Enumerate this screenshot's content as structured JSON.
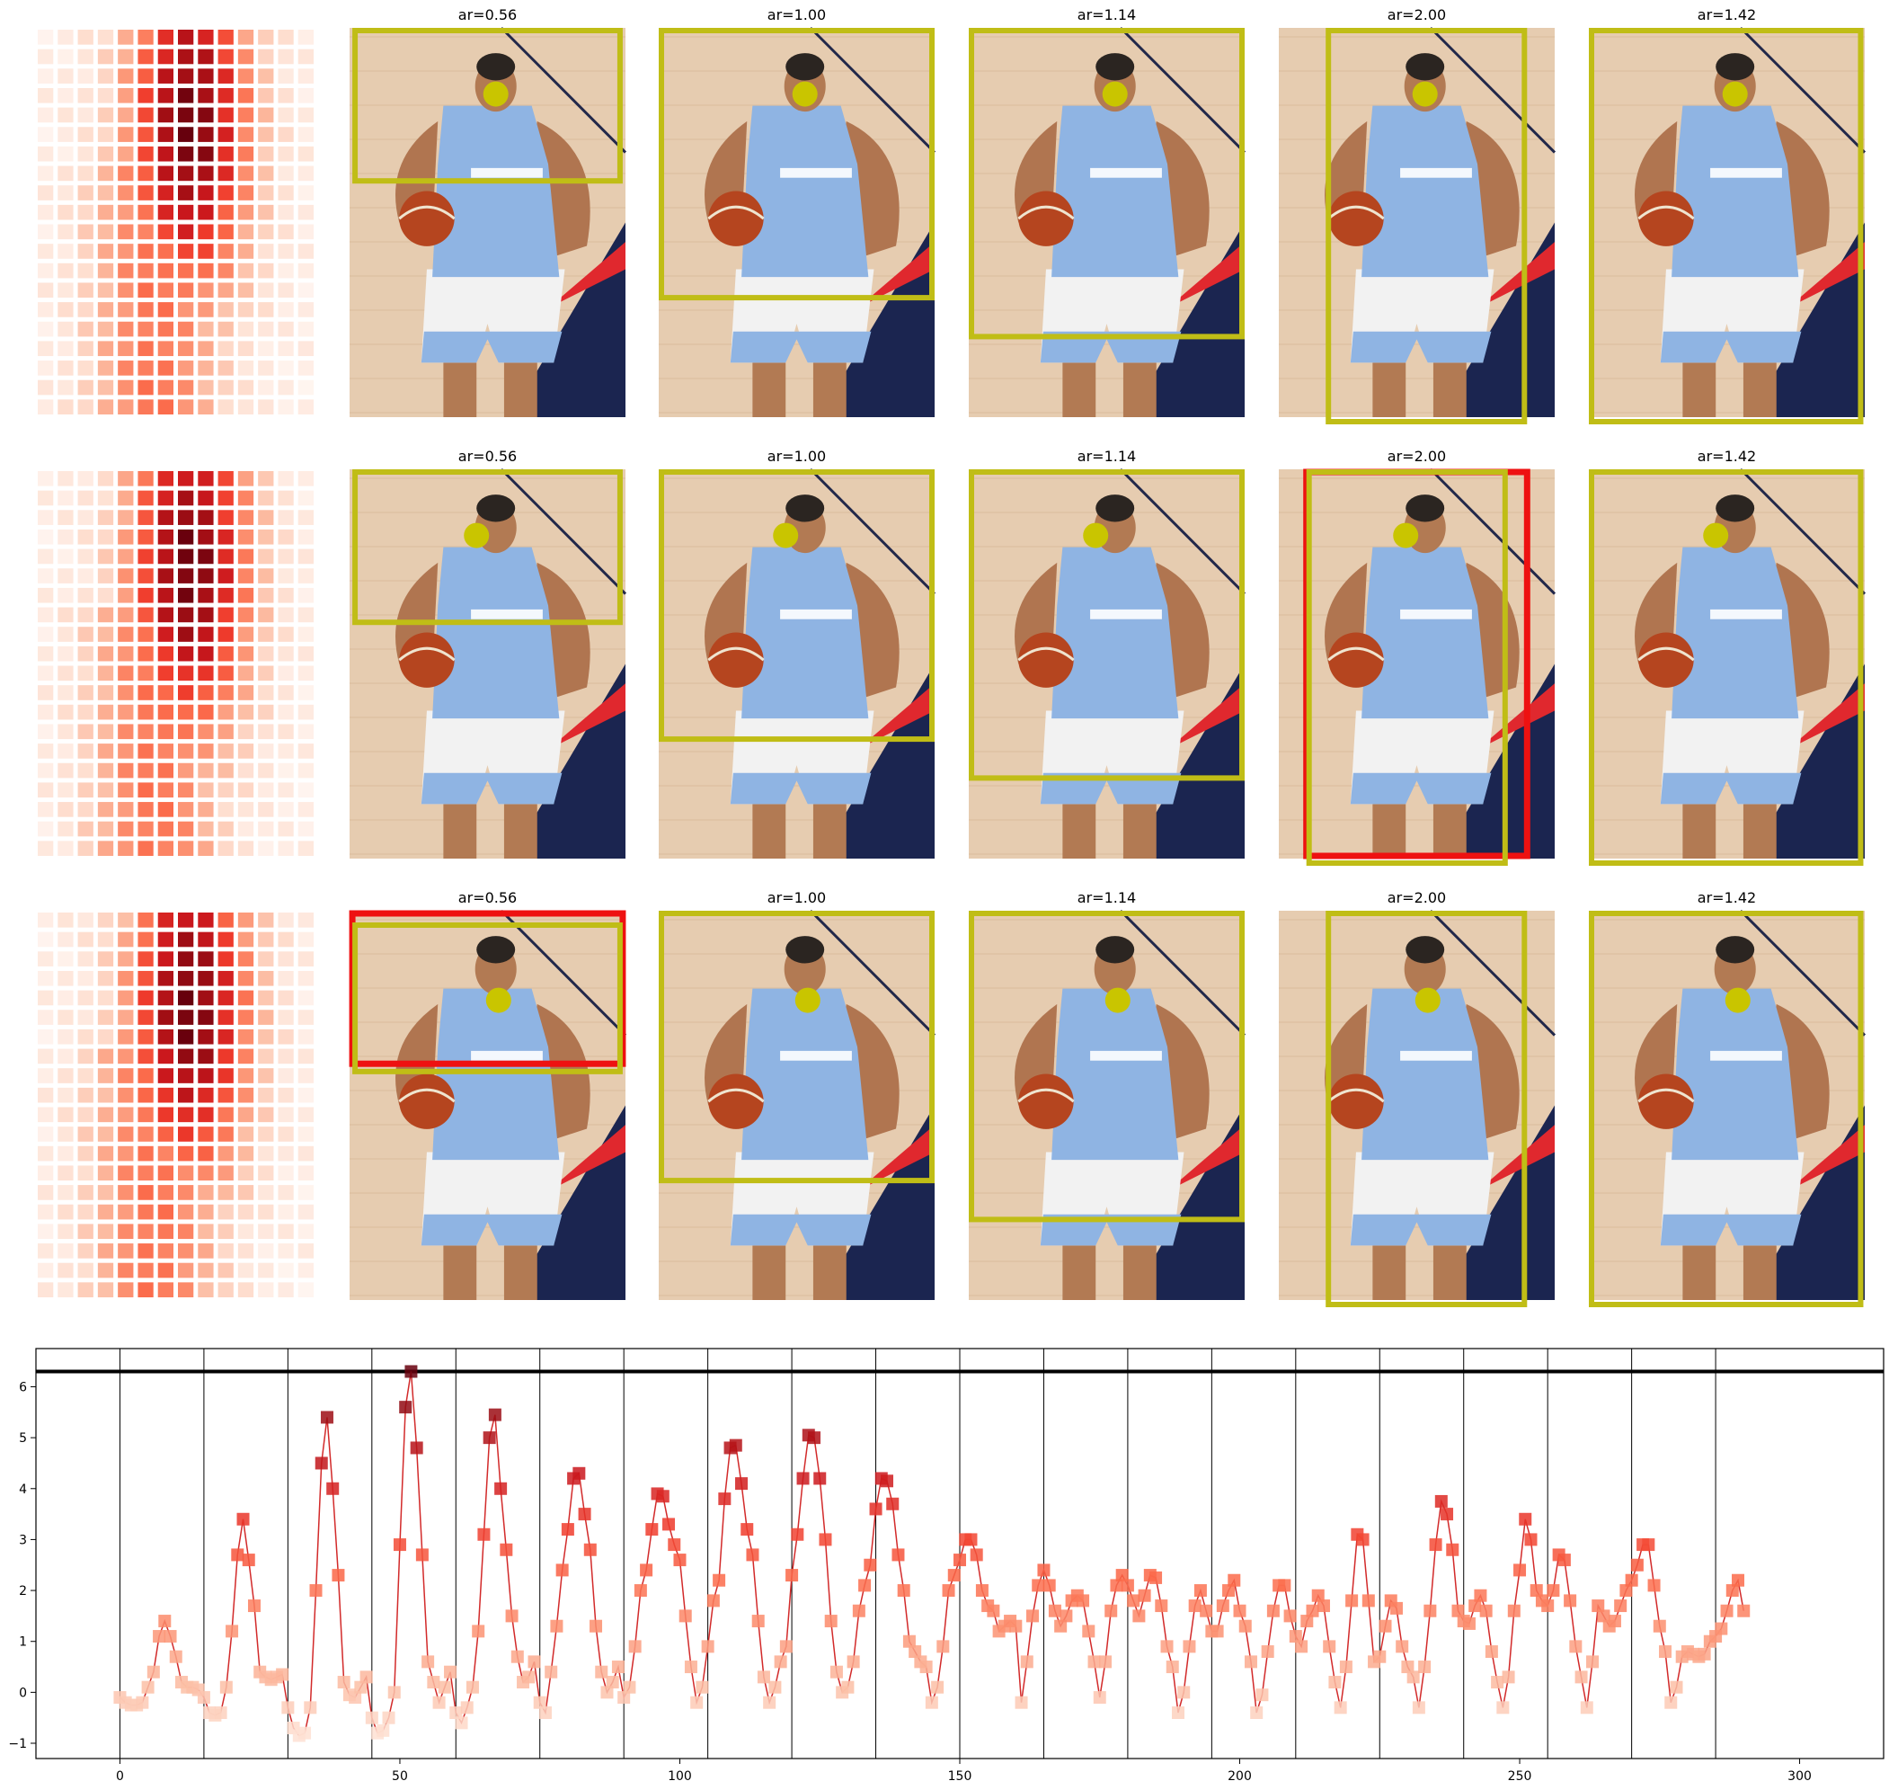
{
  "colors": {
    "box": "#c0bd16",
    "box_conflict": "#ee1111",
    "dot": "#c9c500",
    "line": "#d22a2a",
    "jersey": "#8fb4e3",
    "floor": "#e6ccb0"
  },
  "grid": {
    "rows": [
      {
        "panels": [
          {
            "title": "",
            "kind": "heatmap"
          },
          {
            "title": "ar=0.56",
            "kind": "photo",
            "conflict": false
          },
          {
            "title": "ar=1.00",
            "kind": "photo",
            "conflict": false
          },
          {
            "title": "ar=1.14",
            "kind": "photo",
            "conflict": false
          },
          {
            "title": "ar=2.00",
            "kind": "photo",
            "conflict": false
          },
          {
            "title": "ar=1.42",
            "kind": "photo",
            "conflict": false
          }
        ]
      },
      {
        "panels": [
          {
            "title": "",
            "kind": "heatmap"
          },
          {
            "title": "ar=0.56",
            "kind": "photo",
            "conflict": false
          },
          {
            "title": "ar=1.00",
            "kind": "photo",
            "conflict": false
          },
          {
            "title": "ar=1.14",
            "kind": "photo",
            "conflict": false
          },
          {
            "title": "ar=2.00",
            "kind": "photo",
            "conflict": true
          },
          {
            "title": "ar=1.42",
            "kind": "photo",
            "conflict": false
          }
        ]
      },
      {
        "panels": [
          {
            "title": "",
            "kind": "heatmap"
          },
          {
            "title": "ar=0.56",
            "kind": "photo",
            "conflict": true
          },
          {
            "title": "ar=1.00",
            "kind": "photo",
            "conflict": false
          },
          {
            "title": "ar=1.14",
            "kind": "photo",
            "conflict": false
          },
          {
            "title": "ar=2.00",
            "kind": "photo",
            "conflict": false
          },
          {
            "title": "ar=1.42",
            "kind": "photo",
            "conflict": false
          }
        ]
      }
    ]
  },
  "chart_data": {
    "type": "line",
    "title": "",
    "xlabel": "",
    "ylabel": "",
    "xlim": [
      -15,
      315
    ],
    "ylim": [
      -1.3,
      6.75
    ],
    "xticks": [
      0,
      50,
      100,
      150,
      200,
      250,
      300
    ],
    "yticks": [
      -1,
      0,
      1,
      2,
      3,
      4,
      5,
      6
    ],
    "vlines": [
      0,
      15,
      30,
      45,
      60,
      75,
      90,
      105,
      120,
      135,
      150,
      165,
      180,
      195,
      210,
      225,
      240,
      255,
      270,
      285
    ],
    "hline": 6.3,
    "grid": false,
    "legend": "none",
    "marker": "square",
    "x_start": 0,
    "x_step": 1,
    "values": [
      -0.1,
      -0.2,
      -0.25,
      -0.25,
      -0.2,
      0.1,
      0.4,
      1.1,
      1.4,
      1.1,
      0.7,
      0.2,
      0.1,
      0.1,
      0.05,
      -0.1,
      -0.4,
      -0.45,
      -0.4,
      0.1,
      1.2,
      2.7,
      3.4,
      2.6,
      1.7,
      0.4,
      0.3,
      0.25,
      0.3,
      0.35,
      -0.3,
      -0.7,
      -0.85,
      -0.8,
      -0.3,
      2.0,
      4.5,
      5.4,
      4.0,
      2.3,
      0.2,
      -0.05,
      -0.1,
      0.1,
      0.3,
      -0.5,
      -0.8,
      -0.75,
      -0.5,
      0.0,
      2.9,
      5.6,
      6.3,
      4.8,
      2.7,
      0.6,
      0.2,
      -0.2,
      0.1,
      0.4,
      -0.4,
      -0.6,
      -0.3,
      0.1,
      1.2,
      3.1,
      5.0,
      5.45,
      4.0,
      2.8,
      1.5,
      0.7,
      0.2,
      0.3,
      0.6,
      -0.2,
      -0.4,
      0.4,
      1.3,
      2.4,
      3.2,
      4.2,
      4.3,
      3.5,
      2.8,
      1.3,
      0.4,
      0.0,
      0.2,
      0.5,
      -0.1,
      0.1,
      0.9,
      2.0,
      2.4,
      3.2,
      3.9,
      3.85,
      3.3,
      2.9,
      2.6,
      1.5,
      0.5,
      -0.2,
      0.1,
      0.9,
      1.8,
      2.2,
      3.8,
      4.8,
      4.85,
      4.1,
      3.2,
      2.7,
      1.4,
      0.3,
      -0.2,
      0.1,
      0.6,
      0.9,
      2.3,
      3.1,
      4.2,
      5.05,
      5.0,
      4.2,
      3.0,
      1.4,
      0.4,
      0.0,
      0.1,
      0.6,
      1.6,
      2.1,
      2.5,
      3.6,
      4.2,
      4.15,
      3.7,
      2.7,
      2.0,
      1.0,
      0.8,
      0.6,
      0.5,
      -0.2,
      0.1,
      0.9,
      2.0,
      2.3,
      2.6,
      3.0,
      3.0,
      2.7,
      2.0,
      1.7,
      1.6,
      1.2,
      1.3,
      1.4,
      1.3,
      -0.2,
      0.6,
      1.5,
      2.1,
      2.4,
      2.1,
      1.6,
      1.3,
      1.5,
      1.8,
      1.9,
      1.8,
      1.2,
      0.6,
      -0.1,
      0.6,
      1.6,
      2.1,
      2.3,
      2.1,
      1.8,
      1.5,
      1.9,
      2.3,
      2.25,
      1.7,
      0.9,
      0.5,
      -0.4,
      0.0,
      0.9,
      1.7,
      2.0,
      1.6,
      1.2,
      1.2,
      1.7,
      2.0,
      2.2,
      1.6,
      1.3,
      0.6,
      -0.4,
      -0.05,
      0.8,
      1.6,
      2.1,
      2.1,
      1.5,
      1.1,
      0.9,
      1.4,
      1.6,
      1.9,
      1.7,
      0.9,
      0.2,
      -0.3,
      0.5,
      1.8,
      3.1,
      3.0,
      1.8,
      0.6,
      0.7,
      1.3,
      1.8,
      1.65,
      0.9,
      0.5,
      0.3,
      -0.3,
      0.5,
      1.6,
      2.9,
      3.75,
      3.5,
      2.8,
      1.6,
      1.4,
      1.35,
      1.7,
      1.9,
      1.6,
      0.8,
      0.2,
      -0.3,
      0.3,
      1.6,
      2.4,
      3.4,
      3.0,
      2.0,
      1.8,
      1.7,
      2.0,
      2.7,
      2.6,
      1.8,
      0.9,
      0.3,
      -0.3,
      0.6,
      1.7,
      1.5,
      1.3,
      1.4,
      1.7,
      2.0,
      2.2,
      2.5,
      2.9,
      2.9,
      2.1,
      1.3,
      0.8,
      -0.2,
      0.1,
      0.7,
      0.8,
      0.75,
      0.7,
      0.75,
      1.0,
      1.1,
      1.25,
      1.6,
      2.0,
      2.2,
      1.6
    ]
  }
}
